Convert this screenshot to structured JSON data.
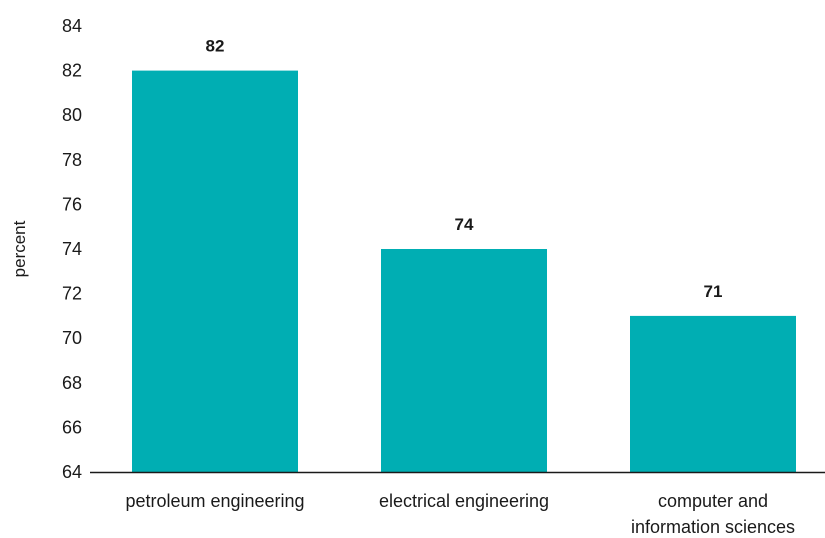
{
  "chart_data": {
    "type": "bar",
    "categories": [
      [
        "petroleum engineering"
      ],
      [
        "electrical engineering"
      ],
      [
        "computer and",
        "information sciences"
      ]
    ],
    "values": [
      82,
      74,
      71
    ],
    "data_labels": [
      "82",
      "74",
      "71"
    ],
    "title": "",
    "xlabel": "",
    "ylabel": "percent",
    "ylim": [
      64,
      84
    ],
    "yticks": [
      64,
      66,
      68,
      70,
      72,
      74,
      76,
      78,
      80,
      82,
      84
    ],
    "grid": false,
    "legend": "none",
    "bar_color": "#00aeb3",
    "axis_color": "#1a1a1a"
  }
}
